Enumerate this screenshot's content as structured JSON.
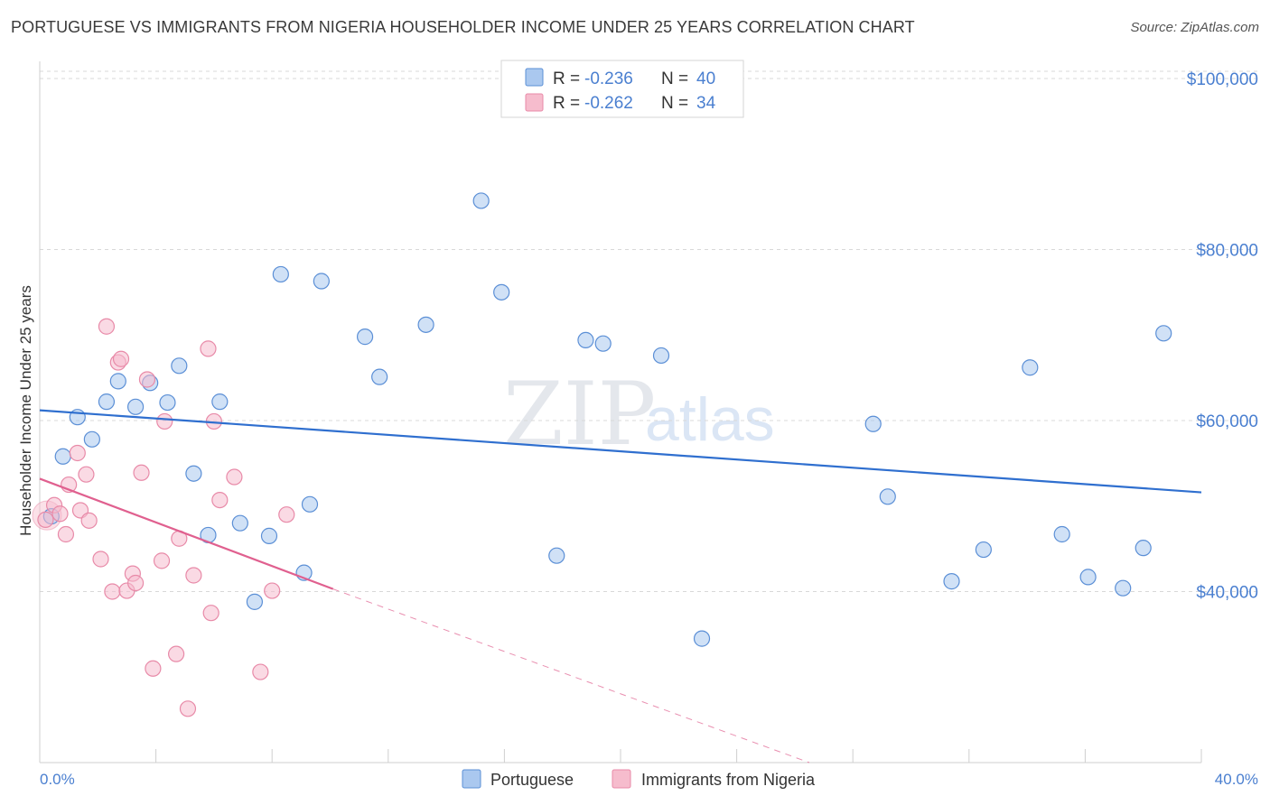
{
  "title": "PORTUGUESE VS IMMIGRANTS FROM NIGERIA HOUSEHOLDER INCOME UNDER 25 YEARS CORRELATION CHART",
  "source": "Source: ZipAtlas.com",
  "watermark": {
    "zip": "ZIP",
    "atlas": "atlas"
  },
  "colors": {
    "blue_fill": "#aac8ef",
    "blue_stroke": "#5b8fd6",
    "blue_line": "#2f6fcf",
    "pink_fill": "#f6bccd",
    "pink_stroke": "#e88aa8",
    "pink_line": "#e0608f",
    "tick_text": "#4a7fd0",
    "grid": "#d8d8d8"
  },
  "legend": {
    "rows": [
      {
        "r_label": "R = ",
        "r_value": "-0.236",
        "n_label": "N = ",
        "n_value": "40"
      },
      {
        "r_label": "R = ",
        "r_value": "-0.262",
        "n_label": "N = ",
        "n_value": "34"
      }
    ]
  },
  "chart_data": {
    "type": "scatter",
    "title": "PORTUGUESE VS IMMIGRANTS FROM NIGERIA HOUSEHOLDER INCOME UNDER 25 YEARS CORRELATION CHART",
    "xlabel": "",
    "ylabel": "Householder Income Under 25 years",
    "xlim": [
      0,
      40
    ],
    "ylim": [
      20000,
      102000
    ],
    "x_tick_labels": [
      "0.0%",
      "40.0%"
    ],
    "y_ticks": [
      40000,
      60000,
      80000,
      100000
    ],
    "y_tick_labels": [
      "$40,000",
      "$60,000",
      "$80,000",
      "$100,000"
    ],
    "grid": true,
    "legend_position": "top-center",
    "series": [
      {
        "name": "Portuguese",
        "r": -0.236,
        "n": 40,
        "trend": {
          "x0": 0,
          "y0": 61200,
          "x1": 40,
          "y1": 51600
        },
        "points": [
          [
            0.4,
            48800
          ],
          [
            0.8,
            55800
          ],
          [
            1.3,
            60400
          ],
          [
            1.8,
            57800
          ],
          [
            2.3,
            62200
          ],
          [
            2.7,
            64600
          ],
          [
            3.3,
            61600
          ],
          [
            3.8,
            64400
          ],
          [
            4.4,
            62100
          ],
          [
            4.8,
            66400
          ],
          [
            5.3,
            53800
          ],
          [
            5.8,
            46600
          ],
          [
            6.2,
            62200
          ],
          [
            6.9,
            48000
          ],
          [
            7.4,
            38800
          ],
          [
            7.9,
            46500
          ],
          [
            8.3,
            77100
          ],
          [
            9.1,
            42200
          ],
          [
            9.3,
            50200
          ],
          [
            9.7,
            76300
          ],
          [
            11.2,
            69800
          ],
          [
            11.7,
            65100
          ],
          [
            13.3,
            71200
          ],
          [
            15.2,
            85700
          ],
          [
            15.9,
            75000
          ],
          [
            17.8,
            44200
          ],
          [
            18.8,
            69400
          ],
          [
            19.4,
            69000
          ],
          [
            21.4,
            67600
          ],
          [
            22.8,
            34500
          ],
          [
            28.7,
            59600
          ],
          [
            29.2,
            51100
          ],
          [
            31.4,
            41200
          ],
          [
            32.5,
            44900
          ],
          [
            34.1,
            66200
          ],
          [
            35.2,
            46700
          ],
          [
            36.1,
            41700
          ],
          [
            37.3,
            40400
          ],
          [
            38.0,
            45100
          ],
          [
            38.7,
            70200
          ]
        ]
      },
      {
        "name": "Immigrants from Nigeria",
        "r": -0.262,
        "n": 34,
        "trend": {
          "x0": 0,
          "y0": 53200,
          "x1": 10.1,
          "y1": 40300,
          "dash_x1": 26.5,
          "dash_y1": 20000
        },
        "points": [
          [
            0.2,
            48400
          ],
          [
            0.5,
            50100
          ],
          [
            0.7,
            49100
          ],
          [
            0.9,
            46700
          ],
          [
            1.0,
            52500
          ],
          [
            1.3,
            56200
          ],
          [
            1.4,
            49500
          ],
          [
            1.6,
            53700
          ],
          [
            1.7,
            48300
          ],
          [
            2.1,
            43800
          ],
          [
            2.3,
            71000
          ],
          [
            2.5,
            40000
          ],
          [
            2.7,
            66800
          ],
          [
            2.8,
            67200
          ],
          [
            3.0,
            40100
          ],
          [
            3.2,
            42100
          ],
          [
            3.3,
            41000
          ],
          [
            3.5,
            53900
          ],
          [
            3.7,
            64800
          ],
          [
            3.9,
            31000
          ],
          [
            4.2,
            43600
          ],
          [
            4.3,
            59900
          ],
          [
            4.7,
            32700
          ],
          [
            4.8,
            46200
          ],
          [
            5.1,
            26300
          ],
          [
            5.3,
            41900
          ],
          [
            5.8,
            68400
          ],
          [
            5.9,
            37500
          ],
          [
            6.0,
            59900
          ],
          [
            6.2,
            50700
          ],
          [
            6.7,
            53400
          ],
          [
            7.6,
            30600
          ],
          [
            8.0,
            40100
          ],
          [
            8.5,
            49000
          ]
        ]
      }
    ]
  }
}
